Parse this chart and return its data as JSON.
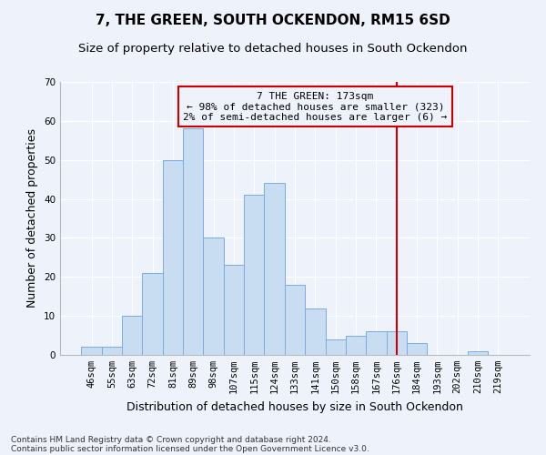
{
  "title": "7, THE GREEN, SOUTH OCKENDON, RM15 6SD",
  "subtitle": "Size of property relative to detached houses in South Ockendon",
  "xlabel": "Distribution of detached houses by size in South Ockendon",
  "ylabel": "Number of detached properties",
  "footer_line1": "Contains HM Land Registry data © Crown copyright and database right 2024.",
  "footer_line2": "Contains public sector information licensed under the Open Government Licence v3.0.",
  "bar_labels": [
    "46sqm",
    "55sqm",
    "63sqm",
    "72sqm",
    "81sqm",
    "89sqm",
    "98sqm",
    "107sqm",
    "115sqm",
    "124sqm",
    "133sqm",
    "141sqm",
    "150sqm",
    "158sqm",
    "167sqm",
    "176sqm",
    "184sqm",
    "193sqm",
    "202sqm",
    "210sqm",
    "219sqm"
  ],
  "bar_values": [
    2,
    2,
    10,
    21,
    50,
    58,
    30,
    23,
    41,
    44,
    18,
    12,
    4,
    5,
    6,
    6,
    3,
    0,
    0,
    1,
    0
  ],
  "bar_color": "#c9ddf2",
  "bar_edgecolor": "#7aabe0",
  "ylim": [
    0,
    70
  ],
  "yticks": [
    0,
    10,
    20,
    30,
    40,
    50,
    60,
    70
  ],
  "vline_color": "#cc0000",
  "annotation_text": "7 THE GREEN: 173sqm\n← 98% of detached houses are smaller (323)\n2% of semi-detached houses are larger (6) →",
  "annotation_box_edgecolor": "#cc0000",
  "background_color": "#eef2fa",
  "grid_color": "#ffffff",
  "title_fontsize": 11,
  "subtitle_fontsize": 9.5,
  "axis_label_fontsize": 9,
  "tick_fontsize": 7.5,
  "annotation_fontsize": 8,
  "footer_fontsize": 6.5
}
